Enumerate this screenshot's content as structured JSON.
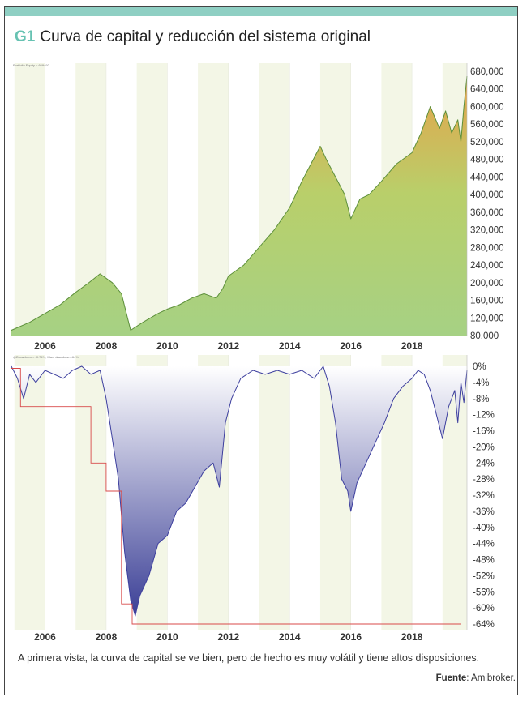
{
  "header": {
    "figure_number": "G1",
    "title": "Curva de capital y reducción del sistema original"
  },
  "caption": "A primera vista, la curva de capital se ve bien, pero de hecho es muy volátil y tiene altos disposiciones.",
  "source": {
    "label": "Fuente",
    "text": ": Amibroker."
  },
  "colors": {
    "accent_band": "#8fcfc3",
    "figure_number": "#67c2b2",
    "equity_fill_low": "#a6d184",
    "equity_fill_high": "#e6a24a",
    "equity_line": "#5c8f3a",
    "drawdown_fill_top": "#ffffff",
    "drawdown_fill_bottom": "#3b3f96",
    "drawdown_line": "#3d3f9e",
    "max_drawdown_line": "#d84a4a",
    "stripe": "#f3f6e6"
  },
  "chart_data": [
    {
      "type": "area",
      "name": "equity",
      "header_text": "Portfolio Equity = 669492",
      "x_ticks": [
        "2006",
        "2008",
        "2010",
        "2012",
        "2014",
        "2016",
        "2018"
      ],
      "x_tick_values": [
        2006,
        2008,
        2010,
        2012,
        2014,
        2016,
        2018
      ],
      "xlim": [
        2004.9,
        2019.8
      ],
      "ylim": [
        80000,
        680000
      ],
      "y_ticks": [
        "680,000",
        "640,000",
        "600,000",
        "560,000",
        "520,000",
        "480,000",
        "440,000",
        "400,000",
        "360,000",
        "320,000",
        "280,000",
        "240,000",
        "200,000",
        "160,000",
        "120,000",
        "80,000"
      ],
      "y_tick_values": [
        680000,
        640000,
        600000,
        560000,
        520000,
        480000,
        440000,
        400000,
        360000,
        320000,
        280000,
        240000,
        200000,
        160000,
        120000,
        80000
      ],
      "x": [
        2004.9,
        2005.5,
        2006.0,
        2006.5,
        2007.0,
        2007.4,
        2007.8,
        2008.2,
        2008.5,
        2008.8,
        2009.2,
        2009.7,
        2010.0,
        2010.4,
        2010.8,
        2011.2,
        2011.6,
        2011.8,
        2012.0,
        2012.5,
        2013.0,
        2013.5,
        2014.0,
        2014.4,
        2014.7,
        2015.0,
        2015.2,
        2015.5,
        2015.8,
        2016.0,
        2016.3,
        2016.6,
        2017.0,
        2017.5,
        2018.0,
        2018.3,
        2018.6,
        2018.9,
        2019.1,
        2019.3,
        2019.5,
        2019.6,
        2019.7,
        2019.8
      ],
      "y": [
        92000,
        110000,
        130000,
        150000,
        178000,
        198000,
        220000,
        200000,
        175000,
        92000,
        110000,
        130000,
        140000,
        150000,
        165000,
        175000,
        165000,
        185000,
        215000,
        240000,
        280000,
        320000,
        370000,
        430000,
        470000,
        510000,
        480000,
        440000,
        400000,
        345000,
        390000,
        400000,
        430000,
        470000,
        495000,
        540000,
        600000,
        550000,
        590000,
        540000,
        570000,
        520000,
        600000,
        669000
      ]
    },
    {
      "type": "area",
      "name": "drawdown",
      "header_text": "@Drawdown = -0.74%, Max. drawdown -64%",
      "x_ticks": [
        "2006",
        "2008",
        "2010",
        "2012",
        "2014",
        "2016",
        "2018"
      ],
      "x_tick_values": [
        2006,
        2008,
        2010,
        2012,
        2014,
        2016,
        2018
      ],
      "xlim": [
        2004.9,
        2019.8
      ],
      "ylim": [
        -64,
        0
      ],
      "y_ticks": [
        "0%",
        "-4%",
        "-8%",
        "-12%",
        "-16%",
        "-20%",
        "-24%",
        "-28%",
        "-32%",
        "-36%",
        "-40%",
        "-44%",
        "-48%",
        "-52%",
        "-56%",
        "-60%",
        "-64%"
      ],
      "y_tick_values": [
        0,
        -4,
        -8,
        -12,
        -16,
        -20,
        -24,
        -28,
        -32,
        -36,
        -40,
        -44,
        -48,
        -52,
        -56,
        -60,
        -64
      ],
      "x": [
        2004.9,
        2005.1,
        2005.3,
        2005.5,
        2005.7,
        2006.0,
        2006.3,
        2006.6,
        2006.9,
        2007.2,
        2007.5,
        2007.8,
        2008.0,
        2008.2,
        2008.4,
        2008.6,
        2008.8,
        2008.95,
        2009.1,
        2009.4,
        2009.7,
        2010.0,
        2010.3,
        2010.6,
        2010.9,
        2011.2,
        2011.5,
        2011.7,
        2011.9,
        2012.1,
        2012.4,
        2012.8,
        2013.2,
        2013.6,
        2014.0,
        2014.4,
        2014.8,
        2015.1,
        2015.3,
        2015.5,
        2015.7,
        2015.9,
        2016.0,
        2016.2,
        2016.5,
        2016.8,
        2017.1,
        2017.4,
        2017.7,
        2018.0,
        2018.2,
        2018.4,
        2018.6,
        2018.8,
        2019.0,
        2019.2,
        2019.4,
        2019.5,
        2019.6,
        2019.7,
        2019.8
      ],
      "y": [
        0,
        -3,
        -8,
        -2,
        -4,
        -1,
        -2,
        -3,
        -1,
        0,
        -2,
        -1,
        -8,
        -18,
        -28,
        -46,
        -58,
        -62,
        -57,
        -52,
        -44,
        -42,
        -36,
        -34,
        -30,
        -26,
        -24,
        -30,
        -14,
        -8,
        -3,
        -1,
        -2,
        -1,
        -2,
        -1,
        -3,
        0,
        -5,
        -14,
        -28,
        -31,
        -36,
        -29,
        -24,
        -19,
        -14,
        -8,
        -5,
        -3,
        -1,
        -2,
        -6,
        -12,
        -18,
        -10,
        -6,
        -14,
        -4,
        -9,
        -1
      ],
      "max_drawdown_steps": [
        [
          2004.9,
          -0.5
        ],
        [
          2005.2,
          -0.5
        ],
        [
          2005.2,
          -10
        ],
        [
          2007.5,
          -10
        ],
        [
          2007.5,
          -24
        ],
        [
          2008.0,
          -24
        ],
        [
          2008.0,
          -31
        ],
        [
          2008.5,
          -31
        ],
        [
          2008.5,
          -59
        ],
        [
          2008.85,
          -59
        ],
        [
          2008.85,
          -64
        ],
        [
          2019.6,
          -64
        ]
      ]
    }
  ]
}
